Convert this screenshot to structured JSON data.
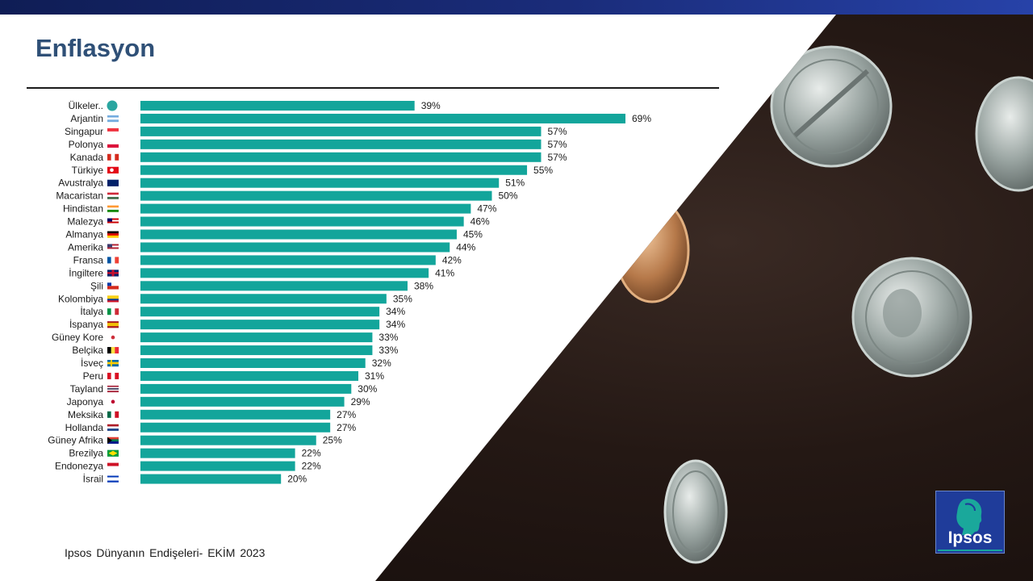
{
  "title": "Enflasyon",
  "source": "Ipsos Dünyanın  Endişeleri- EKİM 2023",
  "logo": {
    "text": "Ipsos",
    "color": "#1f3c9a"
  },
  "chart_data": {
    "type": "bar",
    "orientation": "horizontal",
    "title": "Enflasyon",
    "bar_color": "#13a59b",
    "value_suffix": "%",
    "xlim": [
      0,
      100
    ],
    "categories": [
      "Ülkeler..",
      "Arjantin",
      "Singapur",
      "Polonya",
      "Kanada",
      "Türkiye",
      "Avustralya",
      "Macaristan",
      "Hindistan",
      "Malezya",
      "Almanya",
      "Amerika",
      "Fransa",
      "İngiltere",
      "Şili",
      "Kolombiya",
      "İtalya",
      "İspanya",
      "Güney Kore",
      "Belçika",
      "İsveç",
      "Peru",
      "Tayland",
      "Japonya",
      "Meksika",
      "Hollanda",
      "Güney Afrika",
      "Brezilya",
      "Endonezya",
      "İsrail"
    ],
    "values": [
      39,
      69,
      57,
      57,
      57,
      55,
      51,
      50,
      47,
      46,
      45,
      44,
      42,
      41,
      38,
      35,
      34,
      34,
      33,
      33,
      32,
      31,
      30,
      29,
      27,
      27,
      25,
      22,
      22,
      20
    ],
    "flags": [
      "globe-icon",
      "flag-argentina-icon",
      "flag-singapore-icon",
      "flag-poland-icon",
      "flag-canada-icon",
      "flag-turkey-icon",
      "flag-australia-icon",
      "flag-hungary-icon",
      "flag-india-icon",
      "flag-malaysia-icon",
      "flag-germany-icon",
      "flag-usa-icon",
      "flag-france-icon",
      "flag-uk-icon",
      "flag-chile-icon",
      "flag-colombia-icon",
      "flag-italy-icon",
      "flag-spain-icon",
      "flag-south-korea-icon",
      "flag-belgium-icon",
      "flag-sweden-icon",
      "flag-peru-icon",
      "flag-thailand-icon",
      "flag-japan-icon",
      "flag-mexico-icon",
      "flag-netherlands-icon",
      "flag-south-africa-icon",
      "flag-brazil-icon",
      "flag-indonesia-icon",
      "flag-israel-icon"
    ]
  }
}
